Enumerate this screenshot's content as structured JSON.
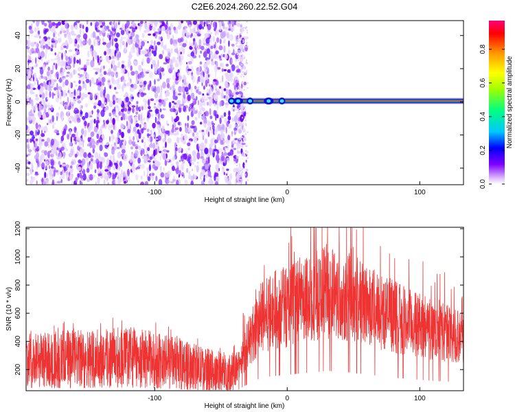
{
  "figure": {
    "title": "C2E6.2024.260.22.52.G04"
  },
  "chart_data": [
    {
      "type": "heatmap",
      "title": "C2E6.2024.260.22.52.G04",
      "xlabel": "Height of straight line (km)",
      "ylabel": "Frequency (Hz)",
      "xlim": [
        -197,
        133
      ],
      "ylim": [
        -50,
        49
      ],
      "xticks": [
        -100,
        0,
        100
      ],
      "yticks": [
        -40,
        -20,
        0,
        20,
        40
      ],
      "grid": false,
      "colorbar": {
        "label": "Normalized spectral amplitude",
        "range": [
          0,
          0.97
        ],
        "ticks": [
          0.0,
          0.2,
          0.4,
          0.6,
          0.8
        ],
        "colormap": [
          "#ffffff",
          "#d9b3ff",
          "#8000ff",
          "#0000ff",
          "#00c8ff",
          "#00ff80",
          "#a0ff00",
          "#ffff00",
          "#ff9900",
          "#ff0000",
          "#ff007a"
        ]
      },
      "regions": [
        {
          "description": "broadband noise",
          "x_range": [
            -197,
            -37
          ],
          "y_range": [
            -50,
            49
          ],
          "amplitude": 0.1
        },
        {
          "description": "carrier line",
          "x_range": [
            -45,
            133
          ],
          "y_center": 0.5,
          "amplitude": 0.9
        }
      ]
    },
    {
      "type": "line",
      "xlabel": "Height of straight line (km)",
      "ylabel": "SNR (10 * v/v)",
      "xlim": [
        -197,
        133
      ],
      "ylim": [
        50,
        1210
      ],
      "xticks": [
        -100,
        0,
        100
      ],
      "yticks": [
        200,
        400,
        600,
        800,
        1000,
        1200
      ],
      "grid": false,
      "series": [
        {
          "color": "#ee3333",
          "x": [
            -197,
            -180,
            -160,
            -140,
            -120,
            -100,
            -80,
            -60,
            -45,
            -38,
            -30,
            -20,
            -10,
            0,
            10,
            20,
            30,
            40,
            50,
            60,
            70,
            80,
            90,
            100,
            110,
            120,
            133
          ],
          "y": [
            280,
            270,
            275,
            285,
            290,
            270,
            240,
            200,
            175,
            200,
            380,
            560,
            620,
            650,
            690,
            720,
            760,
            740,
            710,
            660,
            620,
            580,
            540,
            510,
            480,
            460,
            440
          ]
        }
      ]
    }
  ]
}
